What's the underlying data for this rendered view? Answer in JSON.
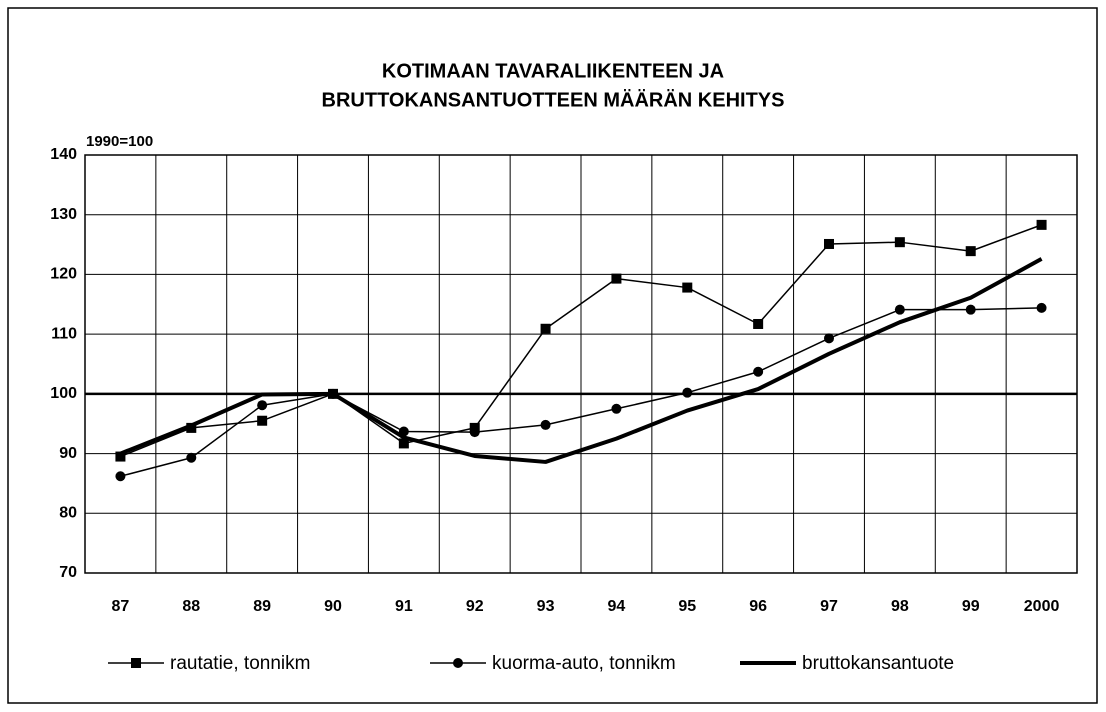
{
  "chart_data": {
    "type": "line",
    "title": [
      "KOTIMAAN TAVARALIIKENTEEN JA",
      "BRUTTOKANSANTUOTTEEN MÄÄRÄN KEHITYS"
    ],
    "y_label": "1990=100",
    "categories": [
      "87",
      "88",
      "89",
      "90",
      "91",
      "92",
      "93",
      "94",
      "95",
      "96",
      "97",
      "98",
      "99",
      "2000"
    ],
    "series": [
      {
        "name": "rautatie, tonnikm",
        "color": "#000000",
        "marker": "square",
        "line_width": 1.5,
        "values": [
          89.5,
          94.3,
          95.5,
          100,
          91.7,
          94.3,
          110.9,
          119.3,
          117.8,
          111.7,
          125.1,
          125.4,
          123.9,
          128.3
        ]
      },
      {
        "name": "kuorma-auto, tonnikm",
        "color": "#000000",
        "marker": "circle",
        "line_width": 1.5,
        "values": [
          86.2,
          89.3,
          98.1,
          100,
          93.7,
          93.6,
          94.8,
          97.5,
          100.2,
          103.7,
          109.3,
          114.1,
          114.1,
          114.4
        ]
      },
      {
        "name": "bruttokansantuote",
        "color": "#000000",
        "marker": "none",
        "line_width": 4,
        "values": [
          90.0,
          94.7,
          99.9,
          100,
          92.7,
          89.6,
          88.6,
          92.5,
          97.2,
          100.8,
          106.7,
          112.0,
          116.1,
          122.6
        ]
      }
    ],
    "ylim": [
      70,
      140
    ],
    "yticks": [
      70,
      80,
      90,
      100,
      110,
      120,
      130,
      140
    ],
    "baseline": 100,
    "grid": true,
    "legend": "bottom"
  }
}
